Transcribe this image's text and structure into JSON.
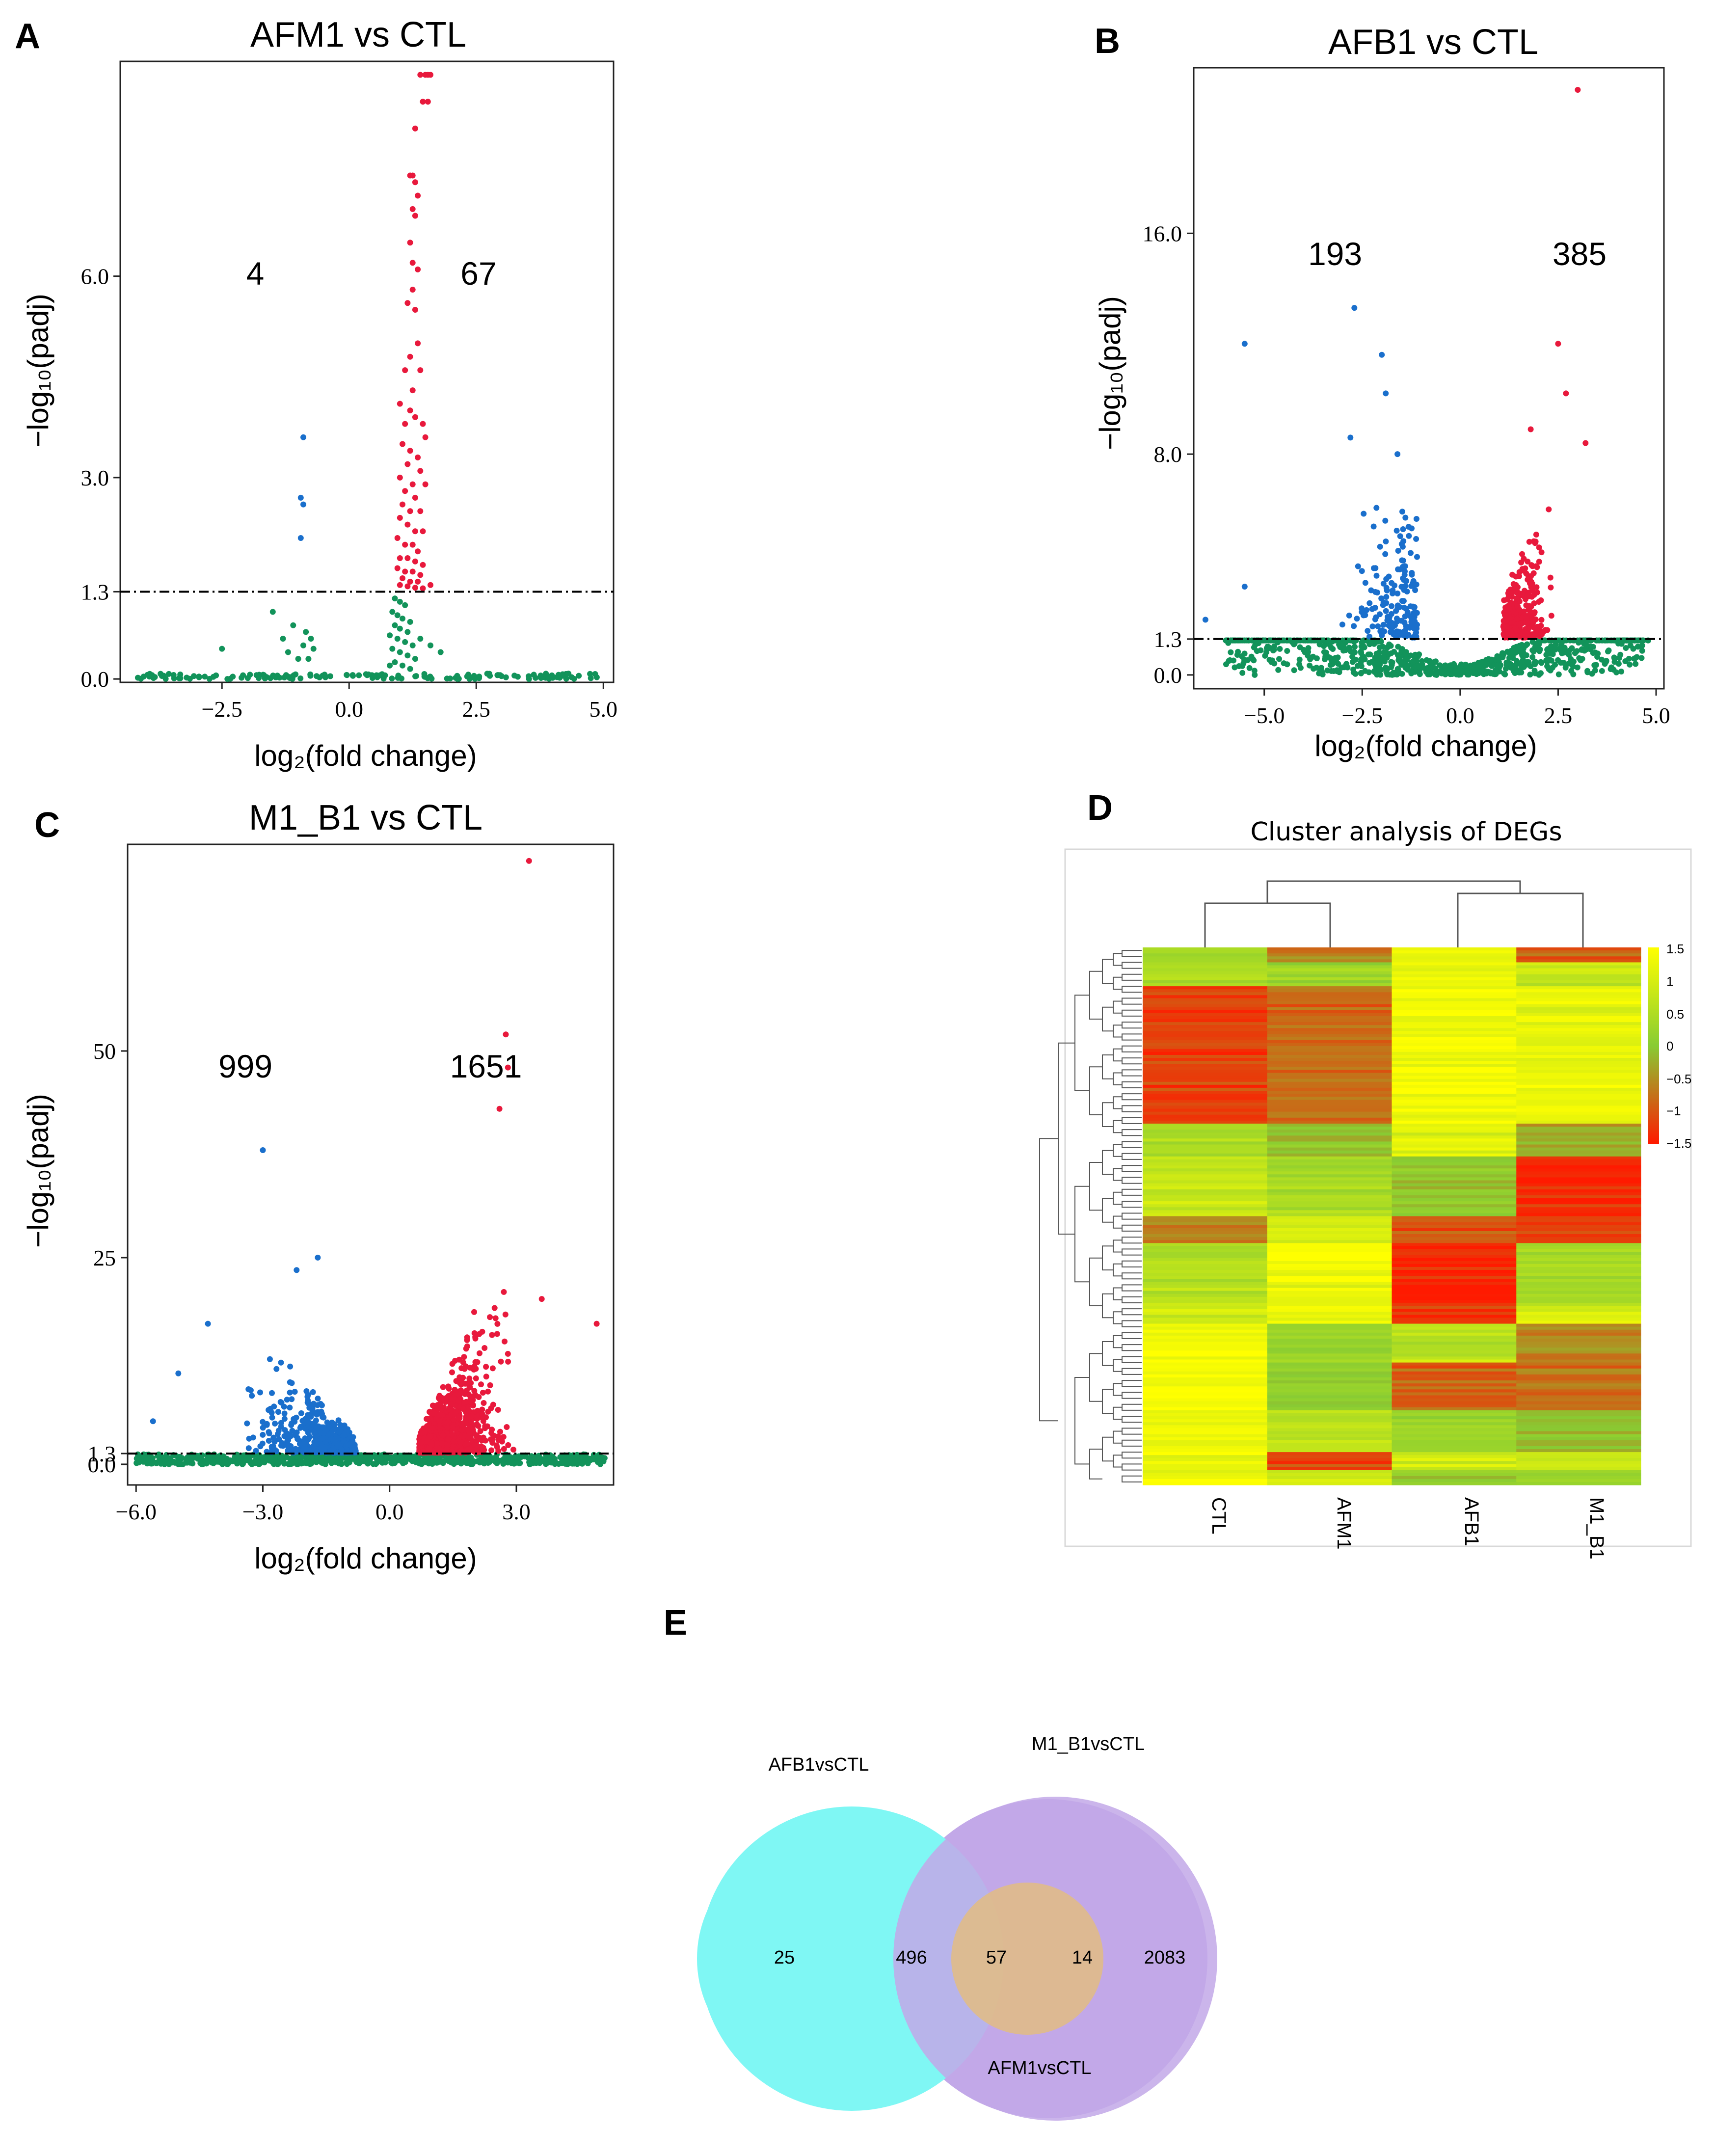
{
  "panels": {
    "A": {
      "letter": "A"
    },
    "B": {
      "letter": "B"
    },
    "C": {
      "letter": "C"
    },
    "D": {
      "letter": "D"
    },
    "E": {
      "letter": "E"
    }
  },
  "colors": {
    "up": "#e8193c",
    "down": "#1a6fcc",
    "ns": "#12935a",
    "threshold": "#000000"
  },
  "chart_data": [
    {
      "id": "A",
      "type": "scatter",
      "title": "AFM1 vs CTL",
      "xlabel": "log₂(fold change)",
      "ylabel": "−log₁₀(padj)",
      "xticks": [
        -2.5,
        0.0,
        2.5,
        5.0
      ],
      "xtick_labels": [
        "−2.5",
        "0.0",
        "2.5",
        "5.0"
      ],
      "yticks": [
        0.0,
        1.3,
        3.0,
        6.0
      ],
      "ytick_labels": [
        "0.0",
        "1.3",
        "3.0",
        "6.0"
      ],
      "xlim": [
        -4.5,
        5.2
      ],
      "ylim": [
        -0.05,
        9.2
      ],
      "threshold": 1.3,
      "down_count": "4",
      "up_count": "67",
      "points": {
        "up": [
          [
            1.4,
            9.0
          ],
          [
            1.5,
            9.0
          ],
          [
            1.55,
            9.0
          ],
          [
            1.6,
            9.0
          ],
          [
            1.45,
            8.6
          ],
          [
            1.55,
            8.6
          ],
          [
            1.3,
            8.2
          ],
          [
            1.2,
            7.5
          ],
          [
            1.25,
            7.5
          ],
          [
            1.3,
            7.4
          ],
          [
            1.35,
            7.2
          ],
          [
            1.25,
            7.0
          ],
          [
            1.3,
            6.9
          ],
          [
            1.2,
            6.5
          ],
          [
            1.25,
            6.2
          ],
          [
            1.35,
            6.1
          ],
          [
            1.25,
            5.8
          ],
          [
            1.15,
            5.6
          ],
          [
            1.3,
            5.5
          ],
          [
            1.35,
            5.0
          ],
          [
            1.2,
            4.8
          ],
          [
            1.4,
            4.6
          ],
          [
            1.1,
            4.6
          ],
          [
            1.25,
            4.3
          ],
          [
            1.0,
            4.1
          ],
          [
            1.2,
            4.0
          ],
          [
            1.3,
            3.9
          ],
          [
            1.45,
            3.8
          ],
          [
            1.1,
            3.8
          ],
          [
            1.5,
            3.6
          ],
          [
            1.05,
            3.5
          ],
          [
            1.2,
            3.4
          ],
          [
            1.35,
            3.3
          ],
          [
            1.15,
            3.2
          ],
          [
            1.4,
            3.1
          ],
          [
            1.0,
            3.0
          ],
          [
            1.25,
            2.9
          ],
          [
            1.5,
            2.9
          ],
          [
            1.1,
            2.8
          ],
          [
            1.3,
            2.7
          ],
          [
            1.05,
            2.6
          ],
          [
            1.2,
            2.5
          ],
          [
            1.4,
            2.5
          ],
          [
            1.0,
            2.4
          ],
          [
            1.15,
            2.3
          ],
          [
            1.3,
            2.2
          ],
          [
            1.45,
            2.2
          ],
          [
            0.95,
            2.1
          ],
          [
            1.1,
            2.0
          ],
          [
            1.25,
            2.0
          ],
          [
            1.35,
            1.9
          ],
          [
            1.0,
            1.8
          ],
          [
            1.15,
            1.8
          ],
          [
            1.3,
            1.75
          ],
          [
            1.45,
            1.7
          ],
          [
            0.95,
            1.65
          ],
          [
            1.1,
            1.6
          ],
          [
            1.25,
            1.6
          ],
          [
            1.4,
            1.55
          ],
          [
            1.05,
            1.5
          ],
          [
            1.2,
            1.45
          ],
          [
            1.35,
            1.45
          ],
          [
            1.0,
            1.4
          ],
          [
            1.15,
            1.38
          ],
          [
            1.3,
            1.36
          ],
          [
            1.45,
            1.35
          ],
          [
            1.6,
            1.4
          ]
        ],
        "down": [
          [
            -0.9,
            3.6
          ],
          [
            -0.95,
            2.7
          ],
          [
            -0.9,
            2.6
          ],
          [
            -0.95,
            2.1
          ]
        ],
        "ns": [
          [
            -2.5,
            0.45
          ],
          [
            -1.5,
            1.0
          ],
          [
            -1.3,
            0.6
          ],
          [
            -1.2,
            0.4
          ],
          [
            -1.1,
            0.8
          ],
          [
            -1.0,
            0.3
          ],
          [
            -0.9,
            0.5
          ],
          [
            -0.85,
            0.7
          ],
          [
            -0.8,
            0.3
          ],
          [
            -0.7,
            0.45
          ],
          [
            -0.75,
            0.6
          ],
          [
            0.9,
            1.2
          ],
          [
            1.0,
            1.15
          ],
          [
            1.1,
            1.1
          ],
          [
            0.85,
            1.0
          ],
          [
            0.95,
            0.95
          ],
          [
            1.05,
            0.9
          ],
          [
            1.2,
            0.85
          ],
          [
            0.9,
            0.8
          ],
          [
            1.0,
            0.75
          ],
          [
            1.15,
            0.7
          ],
          [
            0.8,
            0.65
          ],
          [
            0.95,
            0.6
          ],
          [
            1.1,
            0.55
          ],
          [
            1.25,
            0.5
          ],
          [
            0.85,
            0.45
          ],
          [
            1.0,
            0.4
          ],
          [
            1.15,
            0.35
          ],
          [
            1.3,
            0.3
          ],
          [
            0.9,
            0.25
          ],
          [
            1.05,
            0.2
          ],
          [
            1.4,
            0.6
          ],
          [
            1.6,
            0.5
          ],
          [
            1.8,
            0.4
          ],
          [
            1.2,
            0.15
          ],
          [
            0.8,
            0.2
          ]
        ]
      }
    },
    {
      "id": "B",
      "type": "scatter",
      "title": "AFB1 vs CTL",
      "xlabel": "log₂(fold change)",
      "ylabel": "−log₁₀(padj)",
      "xticks": [
        -5.0,
        -2.5,
        0.0,
        2.5,
        5.0
      ],
      "xtick_labels": [
        "−5.0",
        "−2.5",
        "0.0",
        "2.5",
        "5.0"
      ],
      "yticks": [
        0.0,
        1.3,
        8.0,
        16.0
      ],
      "ytick_labels": [
        "0.0",
        "1.3",
        "8.0",
        "16.0"
      ],
      "xlim": [
        -6.8,
        5.2
      ],
      "ylim": [
        -0.5,
        22.0
      ],
      "threshold": 1.3,
      "down_count": "193",
      "up_count": "385",
      "points": {
        "up": [
          [
            3.0,
            21.2
          ],
          [
            2.5,
            12.0
          ],
          [
            2.7,
            10.2
          ],
          [
            3.2,
            8.4
          ],
          [
            1.8,
            8.9
          ]
        ],
        "down": [
          [
            -5.5,
            12.0
          ],
          [
            -2.7,
            13.3
          ],
          [
            -2.0,
            11.6
          ],
          [
            -1.9,
            10.2
          ],
          [
            -2.8,
            8.6
          ],
          [
            -1.6,
            8.0
          ],
          [
            -5.5,
            3.2
          ],
          [
            -6.5,
            2.0
          ]
        ]
      }
    },
    {
      "id": "C",
      "type": "scatter",
      "title": "M1_B1 vs CTL",
      "xlabel": "log₂(fold change)",
      "ylabel": "−log₁₀(padj)",
      "xticks": [
        -6.0,
        -3.0,
        0.0,
        3.0
      ],
      "xtick_labels": [
        "−6.0",
        "−3.0",
        "0.0",
        "3.0"
      ],
      "yticks": [
        0.0,
        1.3,
        25,
        50
      ],
      "ytick_labels": [
        "0.0",
        "1.3",
        "25",
        "50"
      ],
      "xlim": [
        -6.2,
        5.3
      ],
      "ylim": [
        -2.5,
        75.0
      ],
      "threshold": 1.3,
      "down_count": "999",
      "up_count": "1651",
      "points": {
        "up": [
          [
            3.3,
            73.0
          ],
          [
            2.8,
            48.0
          ],
          [
            2.75,
            52.0
          ],
          [
            2.6,
            43.0
          ],
          [
            4.9,
            17.0
          ],
          [
            3.6,
            20.0
          ]
        ],
        "down": [
          [
            -3.0,
            38.0
          ],
          [
            -1.7,
            25.0
          ],
          [
            -2.2,
            23.5
          ],
          [
            -4.3,
            17.0
          ],
          [
            -5.0,
            11.0
          ],
          [
            -5.6,
            5.2
          ]
        ]
      }
    }
  ],
  "heatmap": {
    "title": "Cluster analysis of DEGs",
    "columns": [
      "CTL",
      "AFM1",
      "AFB1",
      "M1_B1"
    ],
    "scale_labels": [
      "1.5",
      "1",
      "0.5",
      "0",
      "−0.5",
      "−1",
      "−1.5"
    ],
    "scale_range": [
      -1.5,
      1.5
    ],
    "blocks": [
      {
        "from": 0.0,
        "to": 0.03,
        "values": [
          0.4,
          -0.6,
          1.3,
          -0.9
        ]
      },
      {
        "from": 0.03,
        "to": 0.07,
        "values": [
          0.5,
          0.3,
          1.2,
          0.8
        ]
      },
      {
        "from": 0.07,
        "to": 0.33,
        "values": [
          -1.2,
          -0.8,
          1.3,
          1.2
        ]
      },
      {
        "from": 0.33,
        "to": 0.39,
        "values": [
          0.5,
          -0.1,
          1.2,
          -0.3
        ]
      },
      {
        "from": 0.39,
        "to": 0.5,
        "values": [
          0.8,
          0.4,
          0.0,
          -1.4
        ]
      },
      {
        "from": 0.5,
        "to": 0.55,
        "values": [
          -0.6,
          1.0,
          -1.0,
          -1.2
        ]
      },
      {
        "from": 0.55,
        "to": 0.66,
        "values": [
          0.6,
          1.3,
          -1.4,
          0.4
        ]
      },
      {
        "from": 0.66,
        "to": 0.7,
        "values": [
          0.9,
          1.2,
          -1.3,
          1.0
        ]
      },
      {
        "from": 0.7,
        "to": 0.77,
        "values": [
          1.4,
          0.2,
          0.6,
          -0.6
        ]
      },
      {
        "from": 0.77,
        "to": 0.86,
        "values": [
          1.4,
          0.1,
          -0.9,
          -0.8
        ]
      },
      {
        "from": 0.86,
        "to": 0.94,
        "values": [
          1.2,
          0.7,
          0.3,
          -0.1
        ]
      },
      {
        "from": 0.94,
        "to": 0.97,
        "values": [
          1.3,
          -1.2,
          0.9,
          0.8
        ]
      },
      {
        "from": 0.97,
        "to": 1.0,
        "values": [
          1.2,
          0.8,
          0.1,
          0.3
        ]
      }
    ]
  },
  "venn": {
    "labels": {
      "afb1": "AFB1vsCTL",
      "m1b1": "M1_B1vsCTL",
      "afm1": "AFM1vsCTL"
    },
    "counts": {
      "afb1_only": "25",
      "afb1_m1b1": "496",
      "all_three": "57",
      "m1b1_afm1": "14",
      "m1b1_only": "2083"
    },
    "colors": {
      "afb1": "#7ff7f4",
      "m1b1": "#c2a8e8",
      "afm1": "#e2bc82"
    }
  }
}
